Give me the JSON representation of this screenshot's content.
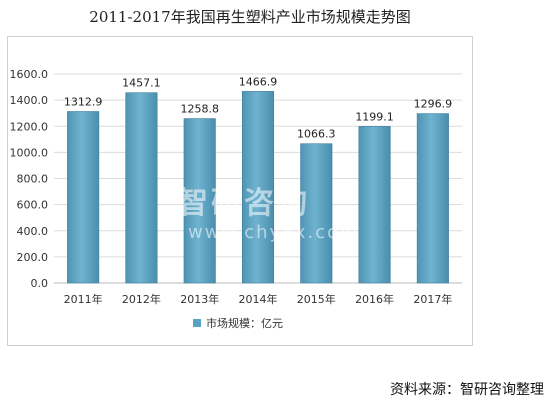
{
  "chart_data": {
    "type": "bar",
    "title": "2011-2017年我国再生塑料产业市场规模走势图",
    "categories": [
      "2011年",
      "2012年",
      "2013年",
      "2014年",
      "2015年",
      "2016年",
      "2017年"
    ],
    "series": [
      {
        "name": "市场规模：亿元",
        "values": [
          1312.9,
          1457.1,
          1258.8,
          1466.9,
          1066.3,
          1199.1,
          1296.9
        ]
      }
    ],
    "data_labels": [
      "1312.9",
      "1457.1",
      "1258.8",
      "1466.9",
      "1066.3",
      "1199.1",
      "1296.9"
    ],
    "y_ticks": [
      "0.0",
      "200.0",
      "400.0",
      "600.0",
      "800.0",
      "1000.0",
      "1200.0",
      "1400.0",
      "1600.0"
    ],
    "ylim": [
      0,
      1600
    ],
    "grid": true,
    "legend_position": "bottom",
    "bar_color": "#5aa2c1"
  },
  "watermark": {
    "brand": "智研咨询",
    "url": "www.chyxx.com"
  },
  "source_note": "资料来源：智研咨询整理"
}
